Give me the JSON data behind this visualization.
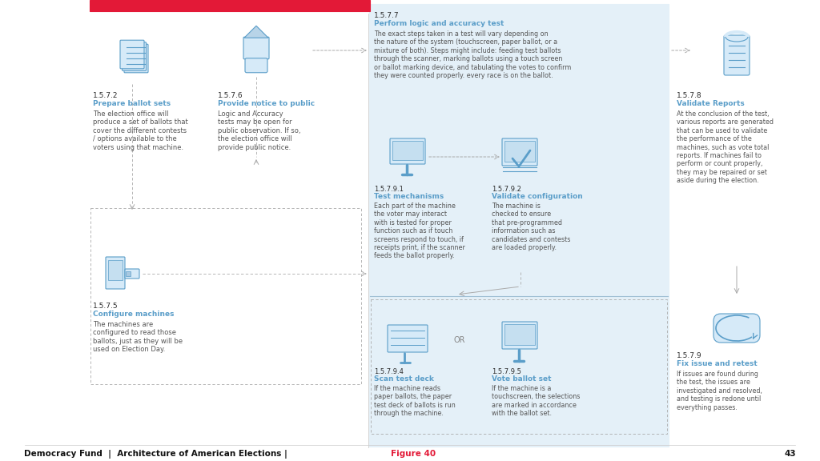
{
  "red_color": "#E31937",
  "blue_color": "#5B9EC9",
  "blue_dark": "#4A8AB5",
  "blue_light": "#C8DFF0",
  "blue_lighter": "#D6EAF8",
  "blue_bg": "#E4F0F8",
  "text_dark": "#2C2C2C",
  "text_mid": "#555555",
  "text_blue": "#5B9EC9",
  "bg_color": "#FFFFFF",
  "gray_line": "#AAAAAA",
  "footer_text": "Democracy Fund  |  Architecture of American Elections |  ",
  "footer_figure": "Figure 40",
  "page_num": "43"
}
